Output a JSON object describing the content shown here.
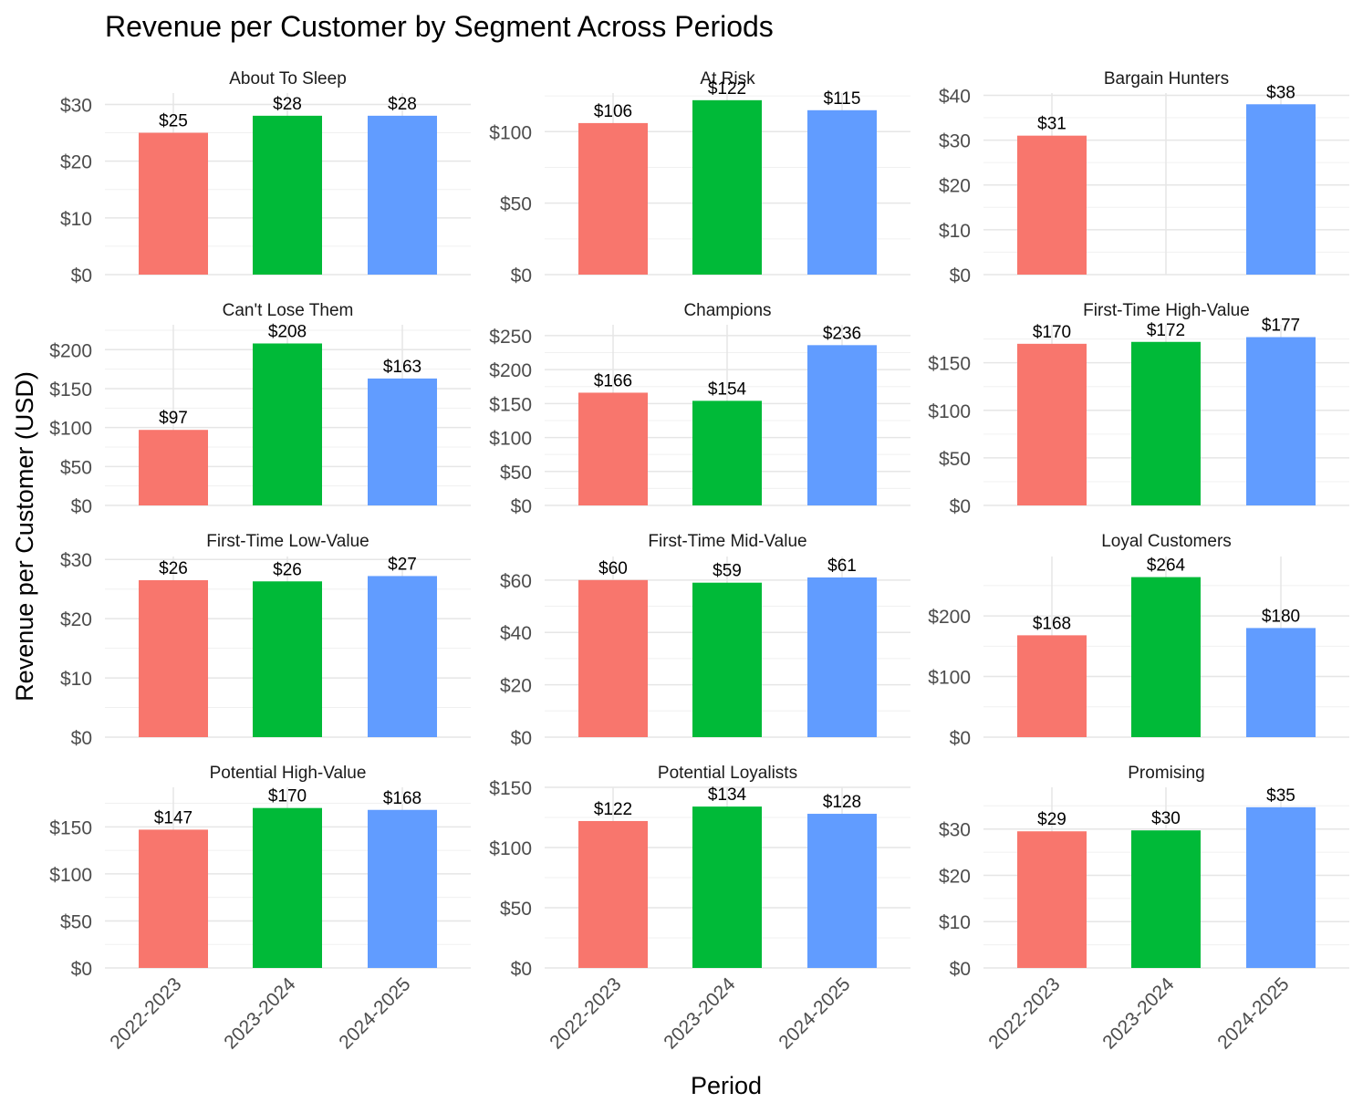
{
  "chart_data": {
    "type": "bar",
    "title": "Revenue per Customer by Segment Across Periods",
    "xlabel": "Period",
    "ylabel": "Revenue per Customer (USD)",
    "categories": [
      "2022-2023",
      "2023-2024",
      "2024-2025"
    ],
    "colors": [
      "#F8766D",
      "#00BA38",
      "#619CFF"
    ],
    "grid": true,
    "legend": "none",
    "facets": [
      {
        "name": "About To Sleep",
        "values": [
          25,
          28,
          28
        ],
        "labels": [
          "$25",
          "$28",
          "$28"
        ],
        "ylim": [
          0,
          32
        ],
        "ticks": [
          0,
          10,
          20,
          30
        ],
        "tick_labels": [
          "$0",
          "$10",
          "$20",
          "$30"
        ]
      },
      {
        "name": "At Risk",
        "values": [
          106,
          122,
          115
        ],
        "labels": [
          "$106",
          "$122",
          "$115"
        ],
        "ylim": [
          0,
          127
        ],
        "ticks": [
          0,
          50,
          100
        ],
        "tick_labels": [
          "$0",
          "$50",
          "$100"
        ]
      },
      {
        "name": "Bargain Hunters",
        "values": [
          31,
          null,
          38
        ],
        "labels": [
          "$31",
          "",
          "$38"
        ],
        "ylim": [
          0,
          40.5
        ],
        "ticks": [
          0,
          10,
          20,
          30,
          40
        ],
        "tick_labels": [
          "$0",
          "$10",
          "$20",
          "$30",
          "$40"
        ]
      },
      {
        "name": "Can't Lose Them",
        "values": [
          97,
          208,
          163
        ],
        "labels": [
          "$97",
          "$208",
          "$163"
        ],
        "ylim": [
          0,
          232
        ],
        "ticks": [
          0,
          50,
          100,
          150,
          200
        ],
        "tick_labels": [
          "$0",
          "$50",
          "$100",
          "$150",
          "$200"
        ]
      },
      {
        "name": "Champions",
        "values": [
          166,
          154,
          236
        ],
        "labels": [
          "$166",
          "$154",
          "$236"
        ],
        "ylim": [
          0,
          266
        ],
        "ticks": [
          0,
          50,
          100,
          150,
          200,
          250
        ],
        "tick_labels": [
          "$0",
          "$50",
          "$100",
          "$150",
          "$200",
          "$250"
        ]
      },
      {
        "name": "First-Time High-Value",
        "values": [
          170,
          172,
          177
        ],
        "labels": [
          "$170",
          "$172",
          "$177"
        ],
        "ylim": [
          0,
          190
        ],
        "ticks": [
          0,
          50,
          100,
          150
        ],
        "tick_labels": [
          "$0",
          "$50",
          "$100",
          "$150"
        ]
      },
      {
        "name": "First-Time Low-Value",
        "values": [
          26.5,
          26.3,
          27.2
        ],
        "labels": [
          "$26",
          "$26",
          "$27"
        ],
        "ylim": [
          0,
          30.5
        ],
        "ticks": [
          0,
          10,
          20,
          30
        ],
        "tick_labels": [
          "$0",
          "$10",
          "$20",
          "$30"
        ]
      },
      {
        "name": "First-Time Mid-Value",
        "values": [
          60,
          59,
          61
        ],
        "labels": [
          "$60",
          "$59",
          "$61"
        ],
        "ylim": [
          0,
          69
        ],
        "ticks": [
          0,
          20,
          40,
          60
        ],
        "tick_labels": [
          "$0",
          "$20",
          "$40",
          "$60"
        ]
      },
      {
        "name": "Loyal Customers",
        "values": [
          168,
          264,
          180
        ],
        "labels": [
          "$168",
          "$264",
          "$180"
        ],
        "ylim": [
          0,
          298
        ],
        "ticks": [
          0,
          100,
          200
        ],
        "tick_labels": [
          "$0",
          "$100",
          "$200"
        ]
      },
      {
        "name": "Potential High-Value",
        "values": [
          147,
          170,
          168
        ],
        "labels": [
          "$147",
          "$170",
          "$168"
        ],
        "ylim": [
          0,
          192
        ],
        "ticks": [
          0,
          50,
          100,
          150
        ],
        "tick_labels": [
          "$0",
          "$50",
          "$100",
          "$150"
        ]
      },
      {
        "name": "Potential Loyalists",
        "values": [
          122,
          134,
          128
        ],
        "labels": [
          "$122",
          "$134",
          "$128"
        ],
        "ylim": [
          0,
          150
        ],
        "ticks": [
          0,
          50,
          100,
          150
        ],
        "tick_labels": [
          "$0",
          "$50",
          "$100",
          "$150"
        ]
      },
      {
        "name": "Promising",
        "values": [
          29.5,
          29.7,
          34.7
        ],
        "labels": [
          "$29",
          "$30",
          "$35"
        ],
        "ylim": [
          0,
          39
        ],
        "ticks": [
          0,
          10,
          20,
          30
        ],
        "tick_labels": [
          "$0",
          "$10",
          "$20",
          "$30"
        ]
      }
    ]
  }
}
